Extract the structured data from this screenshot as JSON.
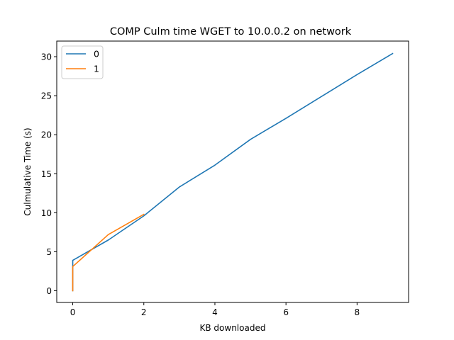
{
  "chart_data": {
    "type": "line",
    "title": "COMP Culm time WGET to 10.0.0.2 on network",
    "xlabel": "KB downloaded",
    "ylabel": "Culmulative Time (s)",
    "xlim": [
      -0.45,
      9.45
    ],
    "ylim": [
      -1.5,
      32.0
    ],
    "xticks": [
      0,
      2,
      4,
      6,
      8
    ],
    "yticks": [
      0,
      5,
      10,
      15,
      20,
      25,
      30
    ],
    "grid": false,
    "legend_position": "top-left",
    "series": [
      {
        "name": "0",
        "color": "#1f77b4",
        "points": [
          [
            0,
            0.0
          ],
          [
            0,
            3.9
          ],
          [
            1,
            6.5
          ],
          [
            2,
            9.6
          ],
          [
            3,
            13.3
          ],
          [
            4,
            16.1
          ],
          [
            5,
            19.4
          ],
          [
            6,
            22.1
          ],
          [
            7,
            24.9
          ],
          [
            8,
            27.7
          ],
          [
            9,
            30.4
          ]
        ]
      },
      {
        "name": "1",
        "color": "#ff7f0e",
        "points": [
          [
            0,
            0.0
          ],
          [
            0,
            3.1
          ],
          [
            1,
            7.2
          ],
          [
            2,
            9.8
          ]
        ]
      }
    ]
  }
}
